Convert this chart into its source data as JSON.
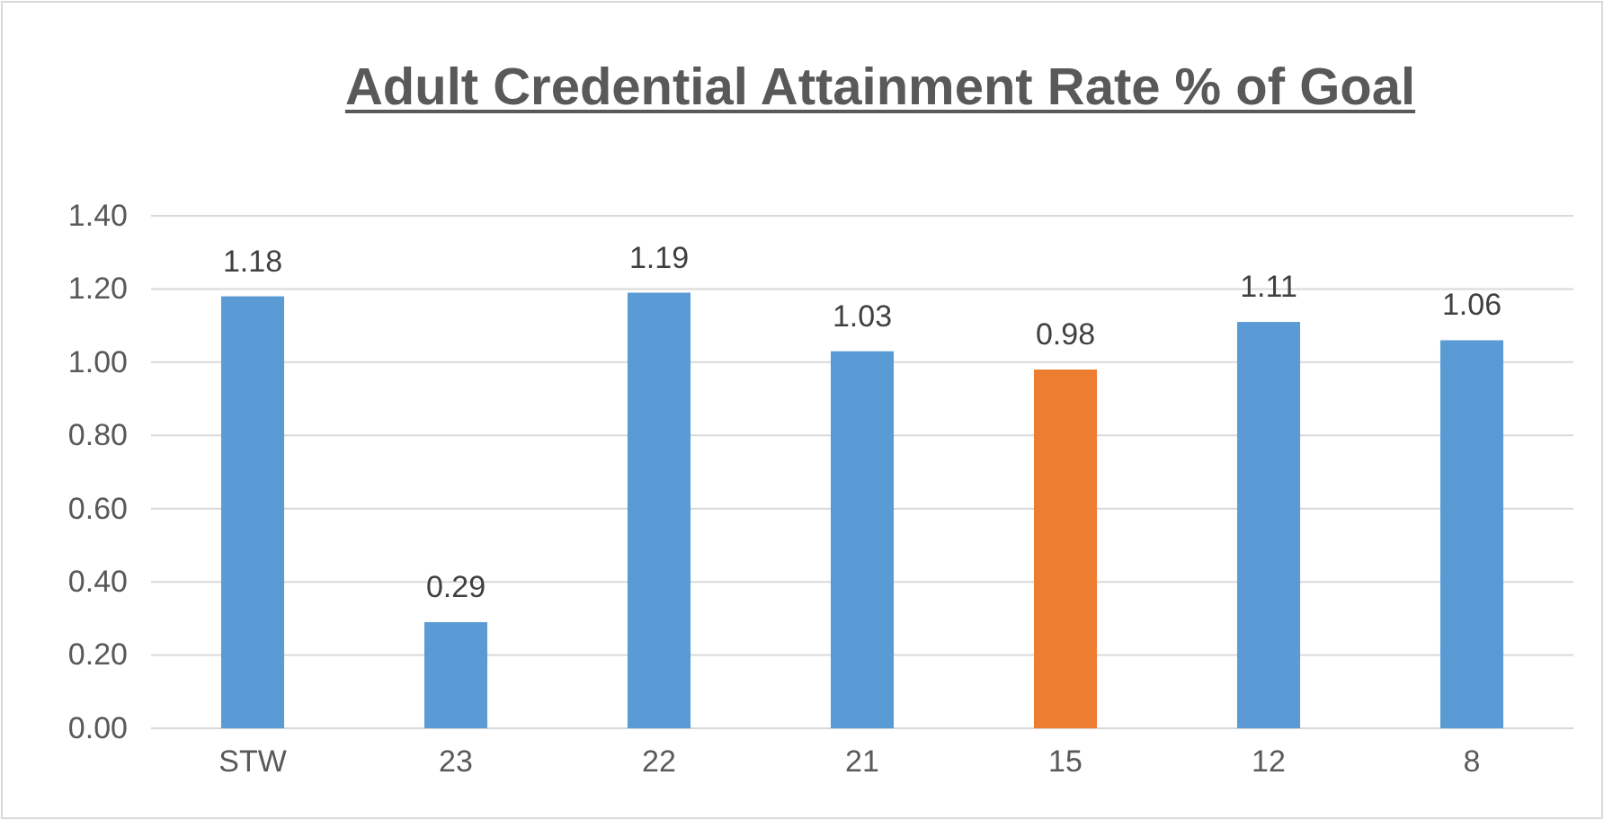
{
  "chart_data": {
    "type": "bar",
    "title": "Adult Credential Attainment Rate % of Goal",
    "categories": [
      "STW",
      "23",
      "22",
      "21",
      "15",
      "12",
      "8"
    ],
    "values": [
      1.18,
      0.29,
      1.19,
      1.03,
      0.98,
      1.11,
      1.06
    ],
    "colors": [
      "#5b9bd5",
      "#5b9bd5",
      "#5b9bd5",
      "#5b9bd5",
      "#ed7d31",
      "#5b9bd5",
      "#5b9bd5"
    ],
    "ylim": [
      0,
      1.4
    ],
    "yticks": [
      {
        "value": 0,
        "label": "0.00"
      },
      {
        "value": 0.2,
        "label": "0.20"
      },
      {
        "value": 0.4,
        "label": "0.40"
      },
      {
        "value": 0.6,
        "label": "0.60"
      },
      {
        "value": 0.8,
        "label": "0.80"
      },
      {
        "value": 1,
        "label": "1.00"
      },
      {
        "value": 1.2,
        "label": "1.20"
      },
      {
        "value": 1.4,
        "label": "1.40"
      }
    ],
    "grid": "y",
    "data_labels": true
  }
}
